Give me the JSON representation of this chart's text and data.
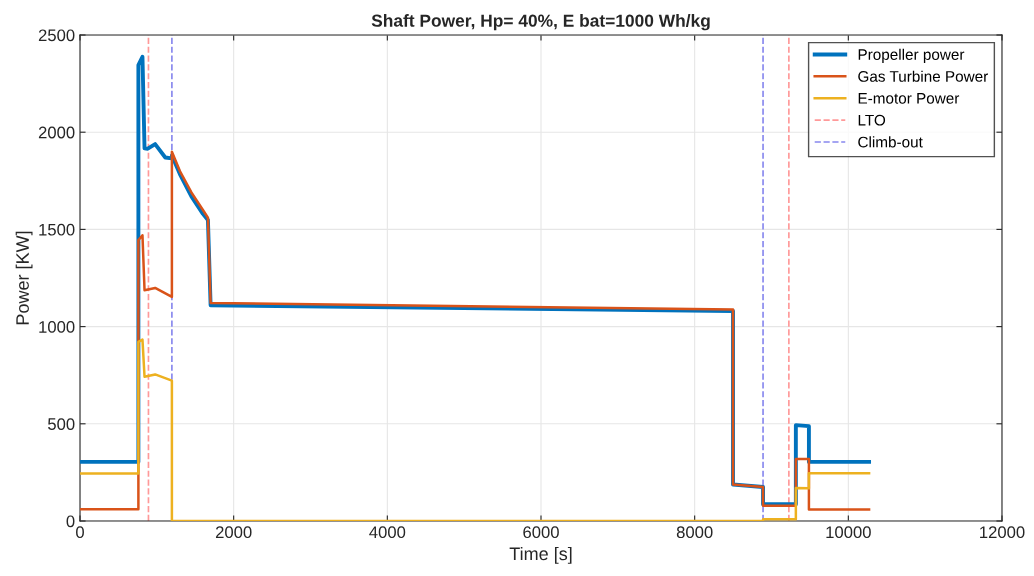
{
  "chart_data": {
    "type": "line",
    "title": "Shaft Power, Hp= 40%, E bat=1000 Wh/kg",
    "xlabel": "Time [s]",
    "ylabel": "Power [KW]",
    "xlim": [
      0,
      12000
    ],
    "xticks": [
      0,
      2000,
      4000,
      6000,
      8000,
      10000,
      12000
    ],
    "ylim": [
      0,
      2500
    ],
    "yticks": [
      0,
      500,
      1000,
      1500,
      2000,
      2500
    ],
    "grid": true,
    "legend": "top right",
    "line_style": "solid",
    "marker": "none",
    "series": [
      {
        "name": "Propeller power",
        "color": "#0072bd",
        "x": [
          0,
          760,
          760,
          813,
          840,
          882,
          978,
          1110,
          1196,
          1196,
          1300,
          1450,
          1600,
          1665,
          1700,
          8499,
          8499,
          8890,
          8890,
          9317,
          9317,
          9487,
          9487,
          10270
        ],
        "values": [
          304,
          304,
          2345,
          2388,
          1917,
          1915,
          1939,
          1870,
          1865,
          1880,
          1785,
          1670,
          1580,
          1548,
          1110,
          1080,
          188,
          175,
          86,
          86,
          493,
          488,
          304,
          304
        ]
      },
      {
        "name": "Gas Turbine Power",
        "color": "#d95319",
        "x": [
          0,
          760,
          760,
          813,
          840,
          978,
          1196,
          1196,
          1300,
          1450,
          1600,
          1665,
          1700,
          8499,
          8499,
          8890,
          8890,
          9317,
          9317,
          9487,
          9487,
          10270
        ],
        "values": [
          60,
          60,
          1445,
          1470,
          1187,
          1199,
          1153,
          1899,
          1800,
          1690,
          1600,
          1560,
          1122,
          1088,
          188,
          175,
          78,
          78,
          319,
          319,
          59,
          59
        ]
      },
      {
        "name": "E-motor Power",
        "color": "#edb120",
        "x": [
          0,
          760,
          760,
          813,
          840,
          978,
          1196,
          1196,
          8890,
          8890,
          9317,
          9317,
          9487,
          9487,
          10270
        ],
        "values": [
          244,
          244,
          921,
          933,
          742,
          754,
          722,
          0,
          0,
          9,
          9,
          170,
          168,
          245,
          245
        ]
      },
      {
        "name": "LTO",
        "color": "#ff9999",
        "line_style": "dashed",
        "x": [
          891,
          891,
          null,
          9226,
          9226
        ],
        "values": [
          0,
          2500,
          null,
          0,
          2500
        ]
      },
      {
        "name": "Climb-out",
        "color": "#8888ee",
        "line_style": "dashed",
        "x": [
          1196,
          1196,
          null,
          8890,
          8890
        ],
        "values": [
          0,
          2500,
          null,
          0,
          2500
        ]
      }
    ]
  }
}
